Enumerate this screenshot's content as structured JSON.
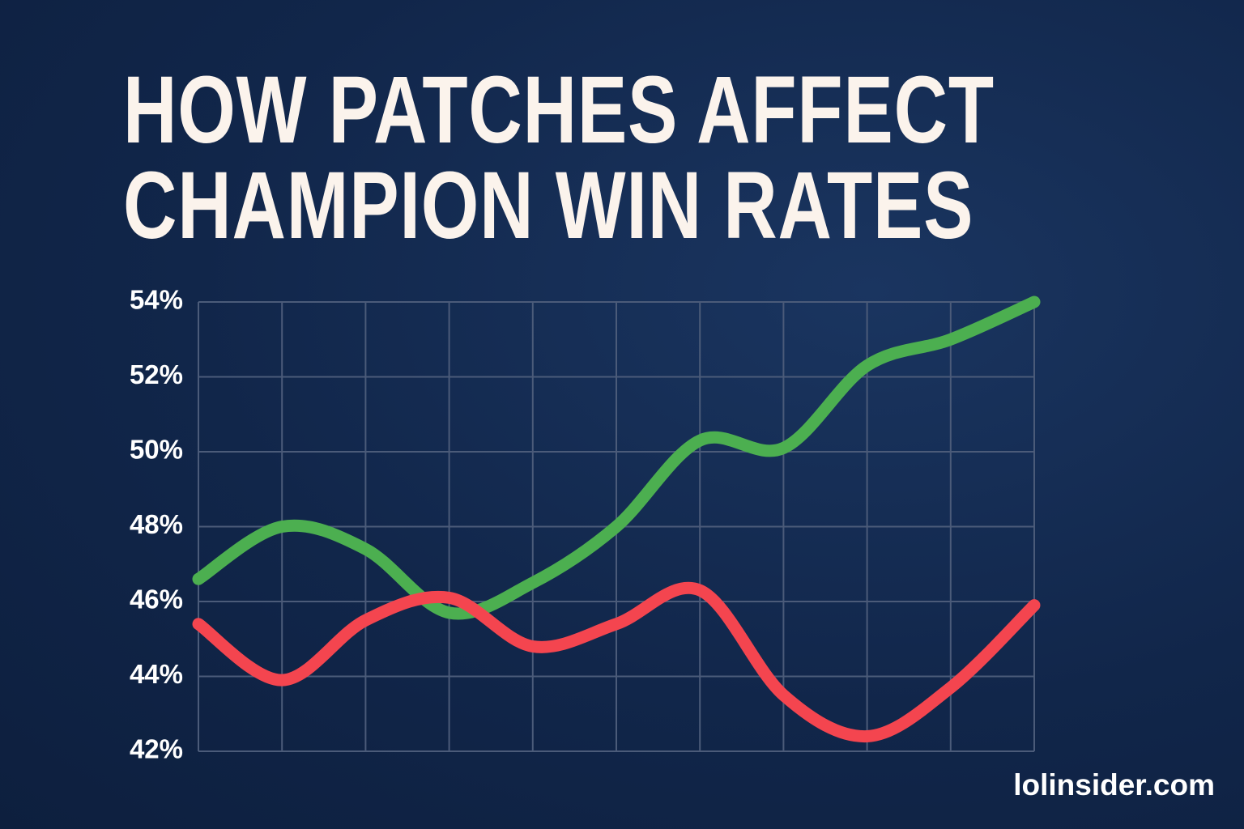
{
  "chart_data": {
    "type": "line",
    "title": "HOW PATCHES AFFECT\nCHAMPION WIN RATES",
    "categories": [
      null,
      null,
      null,
      null,
      null,
      null,
      null,
      null,
      null,
      null,
      null
    ],
    "series": [
      {
        "color": "#4caf50",
        "values": [
          46.6,
          48.0,
          47.4,
          45.7,
          46.5,
          48.0,
          50.3,
          50.1,
          52.3,
          53.0,
          54.0
        ]
      },
      {
        "color": "#f4454f",
        "values": [
          45.4,
          43.9,
          45.5,
          46.1,
          44.8,
          45.4,
          46.3,
          43.5,
          42.4,
          43.7,
          45.9
        ]
      }
    ],
    "ylim": [
      42,
      54
    ],
    "yticks": [
      {
        "value": 42,
        "label": "42%"
      },
      {
        "value": 44,
        "label": "44%"
      },
      {
        "value": 46,
        "label": "46%"
      },
      {
        "value": 48,
        "label": "48%"
      },
      {
        "value": 50,
        "label": "50%"
      },
      {
        "value": 52,
        "label": "52%"
      },
      {
        "value": 54,
        "label": "54%"
      }
    ],
    "grid": true,
    "watermark": "lolinsider.com"
  }
}
